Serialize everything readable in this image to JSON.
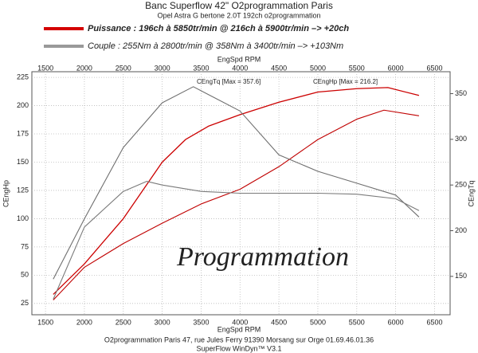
{
  "chart_data": {
    "type": "line",
    "title": "Banc Superflow 42\" O2programmation Paris",
    "subtitle": "Opel Astra G bertone 2.0T 192ch o2programmation",
    "legend_lines": [
      {
        "text": "Puissance : 196ch à 5850tr/min @ 216ch à 5900tr/min  –> +20ch",
        "color": "#d40000"
      },
      {
        "text": "Couple :  255Nm à 2800tr/min @ 358Nm à 3400tr/min –> +103Nm",
        "color": "#999999"
      }
    ],
    "xlabel": "EngSpd RPM",
    "ylabel": "CEngHp",
    "y2label": "CEngTq",
    "annotations": [
      "CEngTq [Max = 357.6]",
      "CEngHp [Max = 216.2]"
    ],
    "watermark": "Programmation",
    "footer": [
      "O2programmation Paris 47, rue Jules Ferry 91390 Morsang sur Orge 01.69.46.01.36",
      "SuperFlow WinDyn™ V3.1"
    ],
    "xlim": [
      1325,
      6700
    ],
    "xticks": [
      1500,
      2000,
      2500,
      3000,
      3500,
      4000,
      4500,
      5000,
      5500,
      6000,
      6500
    ],
    "ylim": [
      15,
      230
    ],
    "yticks": [
      25,
      50,
      75,
      100,
      125,
      150,
      175,
      200,
      225
    ],
    "y2lim": [
      108,
      374
    ],
    "y2ticks": [
      150,
      200,
      250,
      300,
      350
    ],
    "grid": true,
    "series": [
      {
        "name": "CEngHp tuned",
        "color": "#cc0000",
        "width": 1.3,
        "x": [
          1600,
          2000,
          2500,
          3000,
          3300,
          3600,
          4000,
          4500,
          5000,
          5500,
          5900,
          6300
        ],
        "values": [
          33,
          60,
          100,
          150,
          170,
          182,
          192,
          203,
          212,
          215,
          216,
          209
        ]
      },
      {
        "name": "CEngHp stock",
        "color": "#c00000",
        "width": 1.1,
        "x": [
          1600,
          2000,
          2500,
          3000,
          3500,
          4000,
          4500,
          5000,
          5500,
          5850,
          6300
        ],
        "values": [
          28,
          57,
          78,
          96,
          113,
          126,
          146,
          170,
          188,
          196,
          191
        ]
      },
      {
        "name": "CEngTq tuned",
        "color": "#6e6e6e",
        "width": 1.1,
        "axis": "y2",
        "x": [
          1600,
          2000,
          2500,
          3000,
          3400,
          4000,
          4500,
          5000,
          5500,
          6000,
          6300
        ],
        "values": [
          147,
          213,
          291,
          340,
          357.6,
          331,
          283,
          265,
          252,
          239,
          215
        ]
      },
      {
        "name": "CEngTq stock",
        "color": "#7a7a7a",
        "width": 1.1,
        "axis": "y2",
        "x": [
          1600,
          2000,
          2500,
          2800,
          3000,
          3500,
          4000,
          4500,
          5000,
          5500,
          6000,
          6300
        ],
        "values": [
          125,
          204,
          243,
          254,
          250,
          243,
          241,
          241,
          241,
          240,
          235,
          222
        ]
      }
    ]
  }
}
